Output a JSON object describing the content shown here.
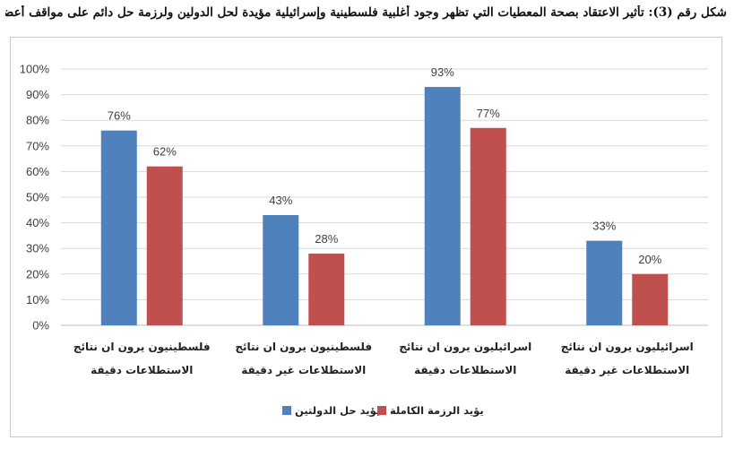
{
  "caption": "شكل رقم (3): تأثير الاعتقاد بصحة المعطيات التي تظهر وجود أغلبية فلسطينية وإسرائيلية مؤيدة لحل الدولين ولرزمة حل دائم على مواقف أعضاء النخبة",
  "chart_data": {
    "type": "bar",
    "title": "",
    "xlabel": "",
    "ylabel": "",
    "ylim": [
      0,
      100
    ],
    "yticks": [
      "0%",
      "10%",
      "20%",
      "30%",
      "40%",
      "50%",
      "60%",
      "70%",
      "80%",
      "90%",
      "100%"
    ],
    "grid": true,
    "legend_position": "bottom",
    "categories": [
      [
        "فلسطينيون يرون ان نتائج",
        "الاستطلاعات دقيقة"
      ],
      [
        "فلسطينيون يرون ان نتائج",
        "الاستطلاعات غير دقيقة"
      ],
      [
        "اسرائيليون يرون ان نتائج",
        "الاستطلاعات دقيقة"
      ],
      [
        "اسرائيليون يرون ان نتائج",
        "الاستطلاعات غير دقيقة"
      ]
    ],
    "series": [
      {
        "name": "يؤيد حل الدولتين",
        "color": "#4f81bd",
        "values": [
          76,
          43,
          93,
          33
        ],
        "labels": [
          "76%",
          "43%",
          "93%",
          "33%"
        ]
      },
      {
        "name": "يؤيد الرزمة الكاملة",
        "color": "#c0504d",
        "values": [
          62,
          28,
          77,
          20
        ],
        "labels": [
          "62%",
          "28%",
          "77%",
          "20%"
        ]
      }
    ]
  }
}
